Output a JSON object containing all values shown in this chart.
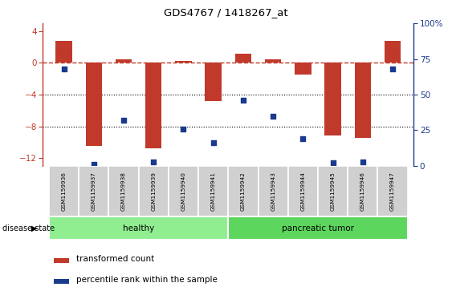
{
  "title": "GDS4767 / 1418267_at",
  "samples": [
    "GSM1159936",
    "GSM1159937",
    "GSM1159938",
    "GSM1159939",
    "GSM1159940",
    "GSM1159941",
    "GSM1159942",
    "GSM1159943",
    "GSM1159944",
    "GSM1159945",
    "GSM1159946",
    "GSM1159947"
  ],
  "bar_values": [
    2.8,
    -10.5,
    0.4,
    -10.8,
    0.2,
    -4.8,
    1.2,
    0.4,
    -1.5,
    -9.2,
    -9.5,
    2.8
  ],
  "percentile_values": [
    68,
    1,
    32,
    3,
    26,
    16,
    46,
    35,
    19,
    2,
    3,
    68
  ],
  "bar_color": "#c0392b",
  "dot_color": "#1a3a8c",
  "healthy_count": 6,
  "tumor_count": 6,
  "healthy_color": "#90ee90",
  "tumor_color": "#5cd65c",
  "group_label_healthy": "healthy",
  "group_label_tumor": "pancreatic tumor",
  "disease_state_label": "disease state",
  "legend_bar_label": "transformed count",
  "legend_dot_label": "percentile rank within the sample",
  "ylim_left": [
    -13,
    5
  ],
  "ylim_right": [
    0,
    100
  ],
  "yticks_left": [
    4,
    0,
    -4,
    -8,
    -12
  ],
  "yticks_right": [
    100,
    75,
    50,
    25,
    0
  ],
  "background_color": "#ffffff",
  "tick_label_bg": "#d0d0d0",
  "zero_line_color": "#c0392b",
  "grid_color": "#000000"
}
